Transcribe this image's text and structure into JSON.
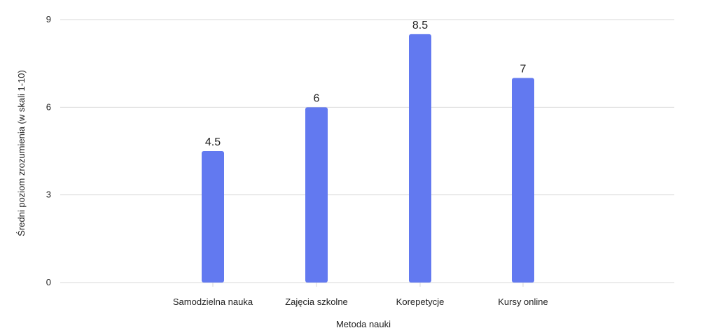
{
  "chart_data": {
    "type": "bar",
    "title": "",
    "xlabel": "Metoda nauki",
    "ylabel": "Średni poziom zrozumienia (w skali 1-10)",
    "categories": [
      "Samodzielna nauka",
      "Zajęcia szkolne",
      "Korepetycje",
      "Kursy online"
    ],
    "values": [
      4.5,
      6,
      8.5,
      7
    ],
    "value_labels": [
      "4.5",
      "6",
      "8.5",
      "7"
    ],
    "y_ticks": [
      0,
      3,
      6,
      9
    ],
    "ylim": [
      0,
      9
    ],
    "grid": true,
    "legend": "none",
    "bar_color": "#6279f0",
    "grid_color": "#d9d9d9"
  }
}
